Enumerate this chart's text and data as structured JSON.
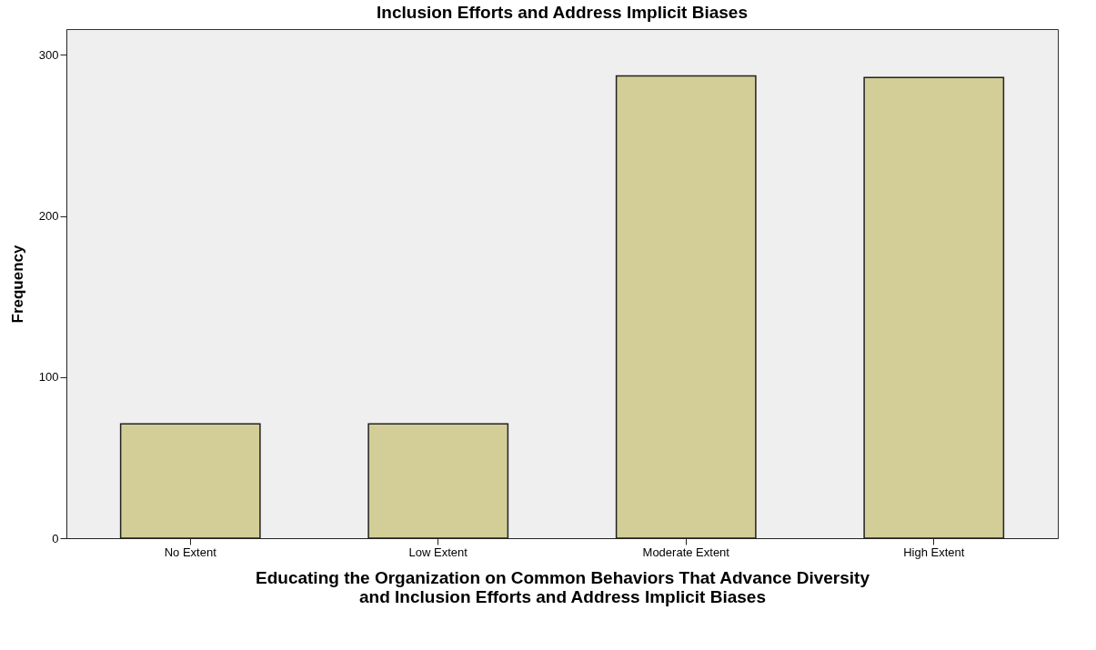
{
  "chart_data": {
    "type": "bar",
    "title": "Inclusion Efforts and Address Implicit Biases",
    "categories": [
      "No Extent",
      "Low Extent",
      "Moderate Extent",
      "High Extent"
    ],
    "values": [
      71,
      71,
      287,
      286
    ],
    "color": "#d3ce97",
    "xlabel": "Educating the Organization on Common Behaviors That Advance Diversity\nand Inclusion Efforts and Address Implicit Biases",
    "ylabel": "Frequency",
    "ylim": [
      0,
      316
    ],
    "yticks": [
      0,
      100,
      200,
      300
    ],
    "grid": false
  }
}
